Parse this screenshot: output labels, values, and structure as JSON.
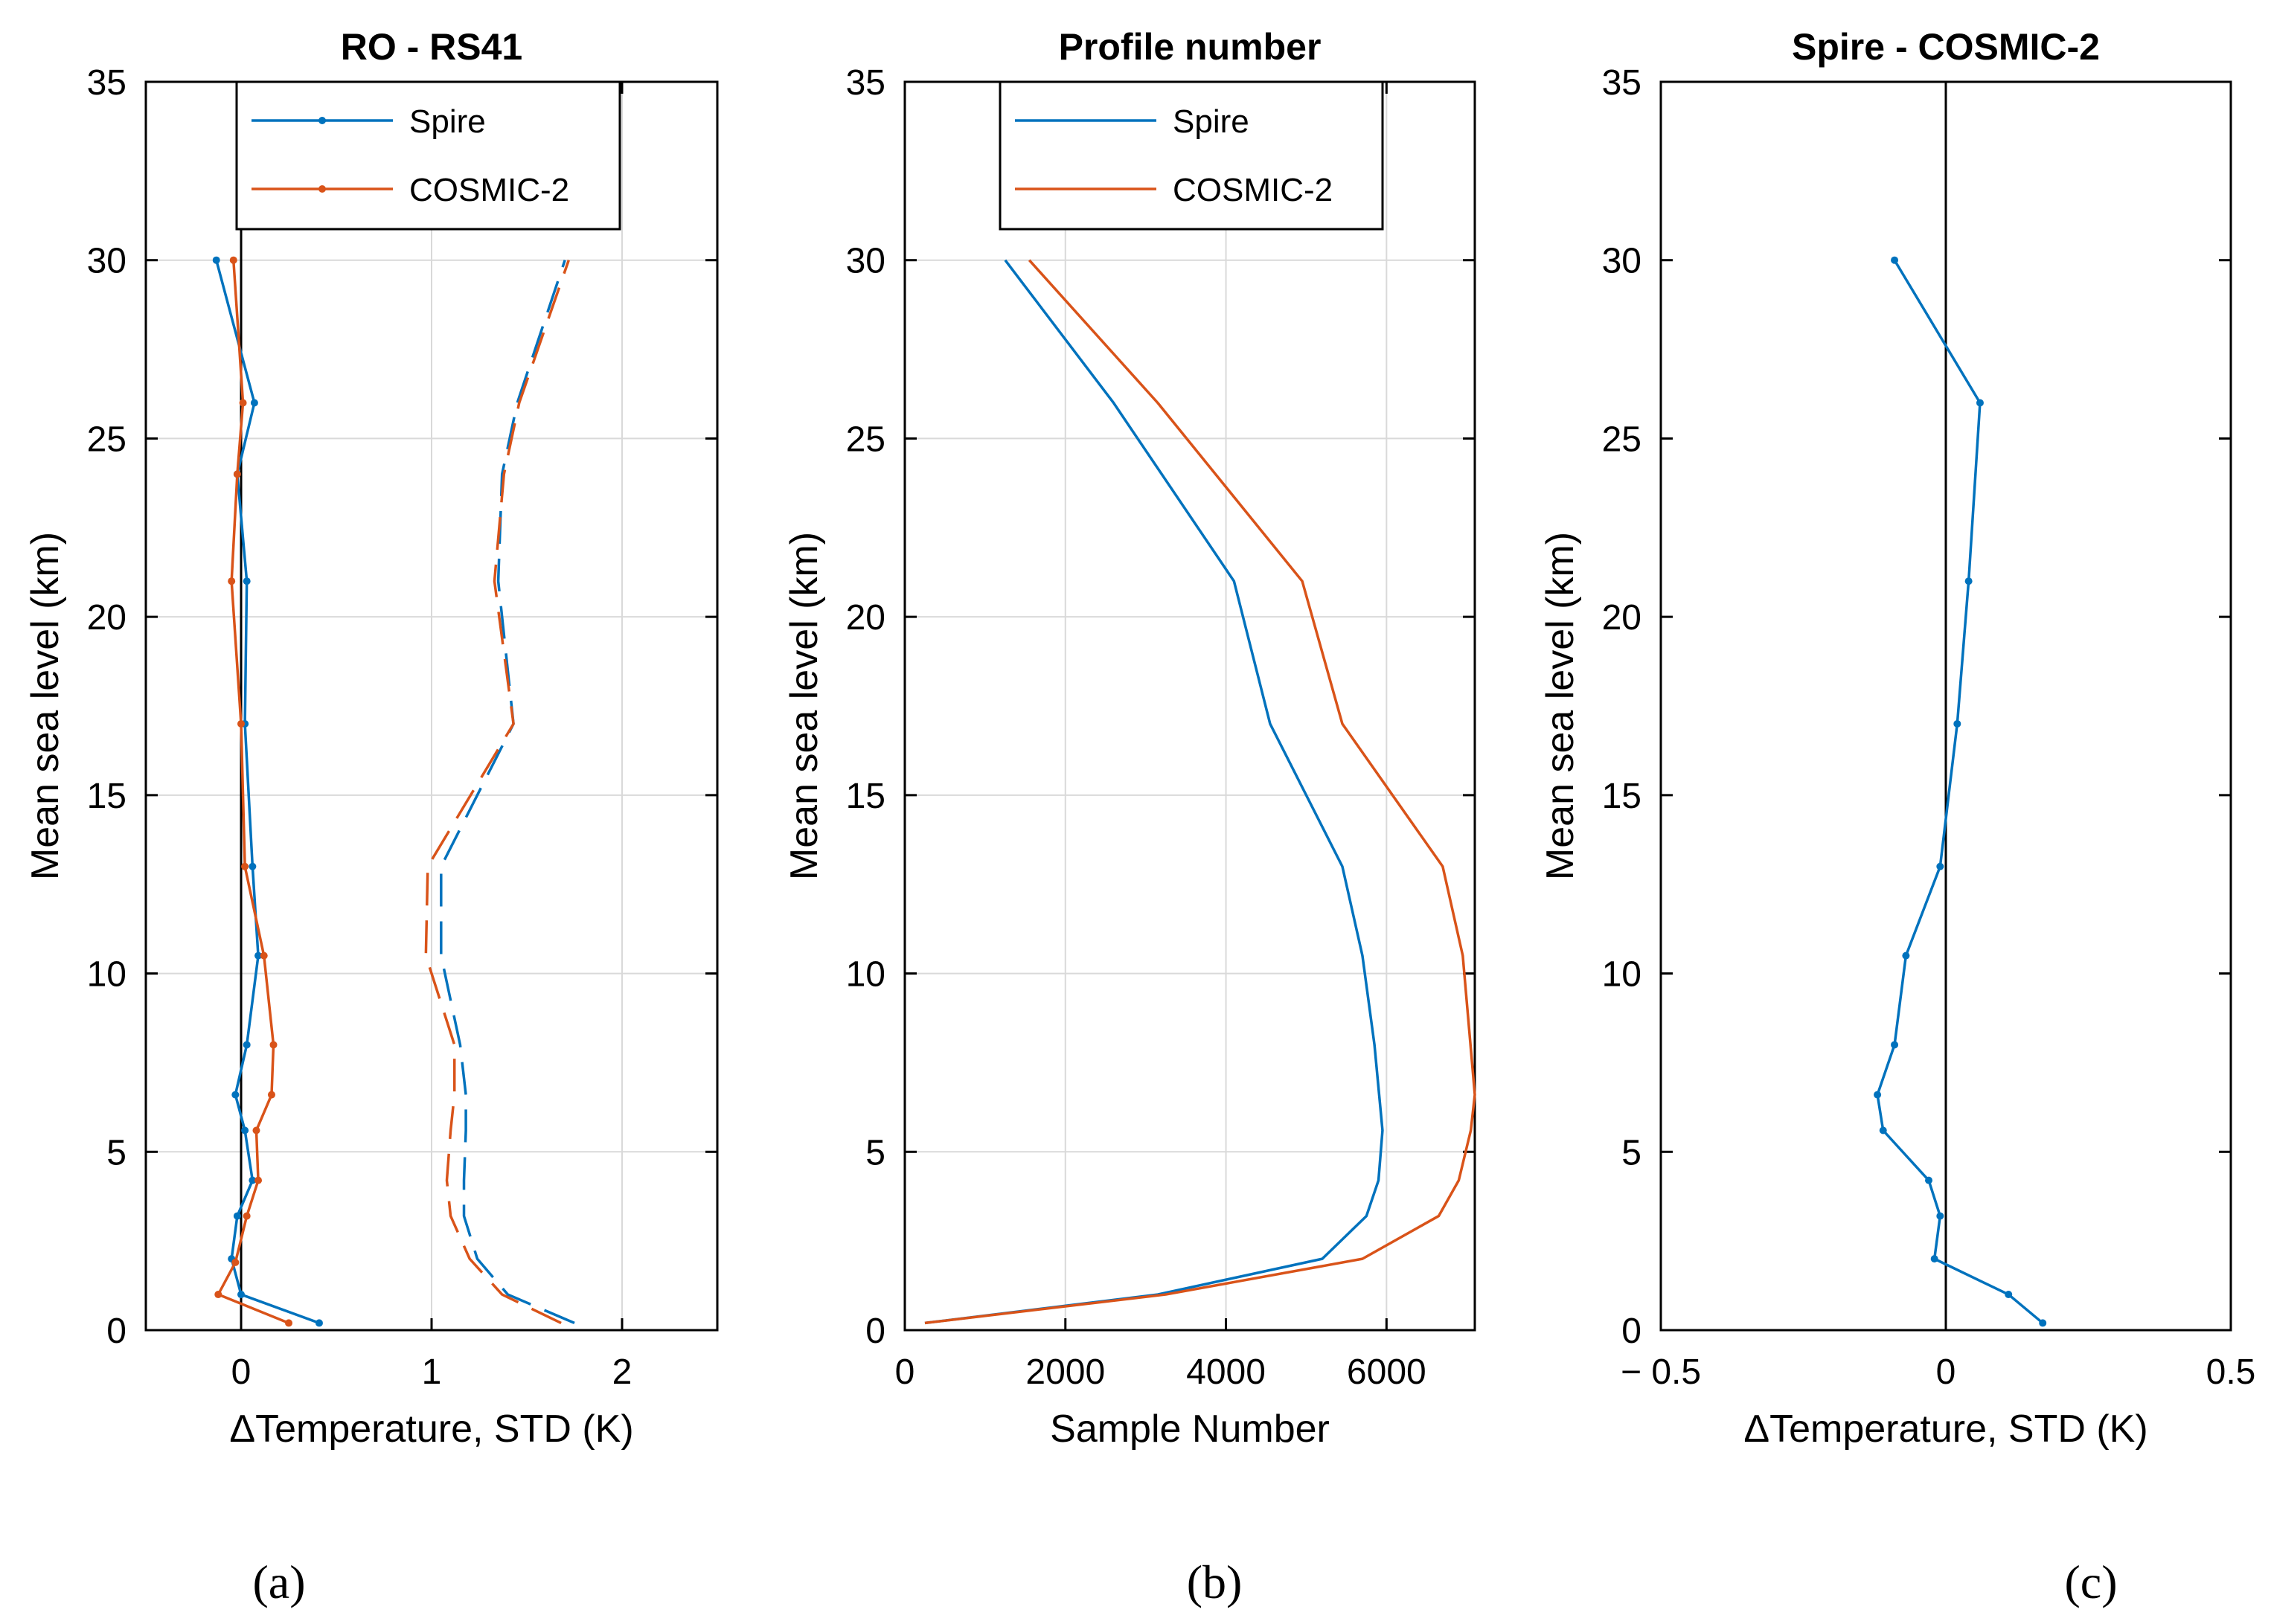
{
  "colors": {
    "spire": "#0072BD",
    "cosmic2": "#D95319",
    "grid": "#d9d9d9",
    "axis": "#000000"
  },
  "chart_data": [
    {
      "id": "a",
      "type": "line",
      "title": "RO - RS41",
      "xlabel": "ΔTemperature, STD (K)",
      "ylabel": "Mean sea level (km)",
      "xlim": [
        -0.5,
        2.5
      ],
      "ylim": [
        0,
        35
      ],
      "xticks": [
        0,
        1,
        2
      ],
      "xtick_labels": [
        "0",
        "1",
        "2"
      ],
      "yticks": [
        0,
        5,
        10,
        15,
        20,
        25,
        30,
        35
      ],
      "ytick_labels": [
        "0",
        "5",
        "10",
        "15",
        "20",
        "25",
        "30",
        "35"
      ],
      "grid": true,
      "zero_line": true,
      "legend": {
        "position": "top-center",
        "entries": [
          "Spire",
          "COSMIC-2"
        ]
      },
      "caption": "(a)",
      "series": [
        {
          "name": "Spire",
          "kind": "mean",
          "color_key": "spire",
          "style": "solid-marker",
          "x": [
            0.41,
            0.0,
            -0.05,
            -0.02,
            0.06,
            0.02,
            -0.03,
            0.03,
            0.09,
            0.06,
            0.02,
            0.03,
            -0.02,
            0.07,
            -0.13
          ],
          "y": [
            0.2,
            1.0,
            2.0,
            3.2,
            4.2,
            5.6,
            6.6,
            8.0,
            10.5,
            13.0,
            17.0,
            21.0,
            24.0,
            26.0,
            30.0
          ]
        },
        {
          "name": "COSMIC-2",
          "kind": "mean",
          "color_key": "cosmic2",
          "style": "solid-marker",
          "x": [
            0.25,
            -0.12,
            -0.03,
            0.03,
            0.09,
            0.08,
            0.16,
            0.17,
            0.12,
            0.02,
            0.0,
            -0.05,
            -0.02,
            0.01,
            -0.04
          ],
          "y": [
            0.2,
            1.0,
            1.9,
            3.2,
            4.2,
            5.6,
            6.6,
            8.0,
            10.5,
            13.0,
            17.0,
            21.0,
            24.0,
            26.0,
            30.0
          ]
        },
        {
          "name": "Spire STD",
          "kind": "std",
          "color_key": "spire",
          "style": "dashed",
          "x": [
            1.75,
            1.4,
            1.24,
            1.17,
            1.17,
            1.18,
            1.18,
            1.15,
            1.05,
            1.05,
            1.43,
            1.35,
            1.37,
            1.45,
            1.7
          ],
          "y": [
            0.2,
            1.0,
            2.0,
            3.2,
            4.2,
            5.6,
            6.6,
            8.0,
            10.5,
            13.0,
            17.0,
            21.0,
            24.0,
            26.0,
            30.0
          ]
        },
        {
          "name": "COSMIC-2 STD",
          "kind": "std",
          "color_key": "cosmic2",
          "style": "dashed",
          "x": [
            1.68,
            1.37,
            1.2,
            1.1,
            1.08,
            1.1,
            1.12,
            1.12,
            0.97,
            0.98,
            1.43,
            1.33,
            1.38,
            1.46,
            1.72
          ],
          "y": [
            0.2,
            1.0,
            2.0,
            3.2,
            4.2,
            5.6,
            6.6,
            8.0,
            10.5,
            13.0,
            17.0,
            21.0,
            24.0,
            26.0,
            30.0
          ]
        }
      ]
    },
    {
      "id": "b",
      "type": "line",
      "title": "Profile number",
      "xlabel": "Sample Number",
      "ylabel": "Mean sea level (km)",
      "xlim": [
        0,
        7100
      ],
      "ylim": [
        0,
        35
      ],
      "xticks": [
        0,
        2000,
        4000,
        6000
      ],
      "xtick_labels": [
        "0",
        "2000",
        "4000",
        "6000"
      ],
      "yticks": [
        0,
        5,
        10,
        15,
        20,
        25,
        30,
        35
      ],
      "ytick_labels": [
        "0",
        "5",
        "10",
        "15",
        "20",
        "25",
        "30",
        "35"
      ],
      "grid": true,
      "zero_line": false,
      "legend": {
        "position": "top-center",
        "entries": [
          "Spire",
          "COSMIC-2"
        ]
      },
      "caption": "(b)",
      "series": [
        {
          "name": "Spire",
          "kind": "mean",
          "color_key": "spire",
          "style": "solid",
          "x": [
            250,
            3150,
            5200,
            5750,
            5900,
            5950,
            5850,
            5700,
            5450,
            4550,
            4100,
            2600,
            1250
          ],
          "y": [
            0.2,
            1.0,
            2.0,
            3.2,
            4.2,
            5.6,
            8.0,
            10.5,
            13.0,
            17.0,
            21.0,
            26.0,
            30.0
          ]
        },
        {
          "name": "COSMIC-2",
          "kind": "mean",
          "color_key": "cosmic2",
          "style": "solid",
          "x": [
            250,
            3250,
            5700,
            6650,
            6900,
            7050,
            7100,
            6950,
            6700,
            5450,
            4950,
            3150,
            1550
          ],
          "y": [
            0.2,
            1.0,
            2.0,
            3.2,
            4.2,
            5.6,
            6.6,
            10.5,
            13.0,
            17.0,
            21.0,
            26.0,
            30.0
          ]
        }
      ]
    },
    {
      "id": "c",
      "type": "line",
      "title": "Spire - COSMIC-2",
      "xlabel": "ΔTemperature, STD (K)",
      "ylabel": "Mean sea level (km)",
      "xlim": [
        -0.5,
        0.5
      ],
      "ylim": [
        0,
        35
      ],
      "xticks": [
        -0.5,
        0,
        0.5
      ],
      "xtick_labels": [
        "− 0.5",
        "0",
        "0.5"
      ],
      "yticks": [
        0,
        5,
        10,
        15,
        20,
        25,
        30,
        35
      ],
      "ytick_labels": [
        "0",
        "5",
        "10",
        "15",
        "20",
        "25",
        "30",
        "35"
      ],
      "grid": false,
      "zero_line": true,
      "legend": null,
      "caption": "(c)",
      "series": [
        {
          "name": "Spire - COSMIC-2",
          "kind": "mean",
          "color_key": "spire",
          "style": "solid-marker",
          "x": [
            0.17,
            0.11,
            -0.02,
            -0.01,
            -0.03,
            -0.11,
            -0.12,
            -0.09,
            -0.07,
            -0.01,
            0.02,
            0.04,
            0.06,
            -0.09
          ],
          "y": [
            0.2,
            1.0,
            2.0,
            3.2,
            4.2,
            5.6,
            6.6,
            8.0,
            10.5,
            13.0,
            17.0,
            21.0,
            26.0,
            30.0
          ]
        }
      ]
    }
  ]
}
